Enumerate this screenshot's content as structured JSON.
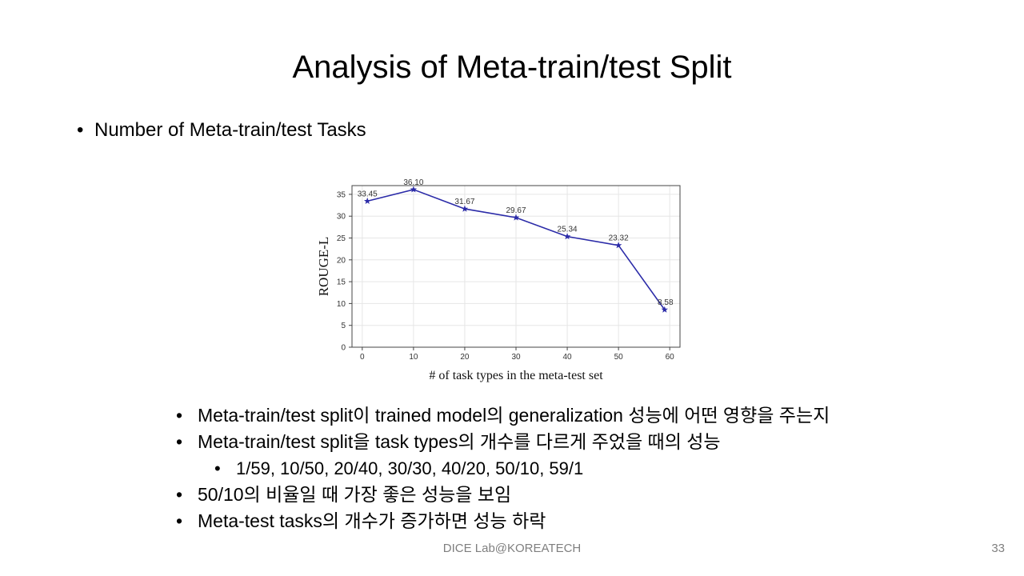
{
  "slide": {
    "title": "Analysis of Meta-train/test Split",
    "top_bullet": "Number of Meta-train/test Tasks",
    "bullet_symbol": "•",
    "bullets": [
      {
        "text": "Meta-train/test split이 trained model의 generalization 성능에 어떤 영향을 주는지",
        "level": 1
      },
      {
        "text": "Meta-train/test split을 task types의 개수를 다르게 주었을 때의 성능",
        "level": 1
      },
      {
        "text": "1/59, 10/50, 20/40, 30/30, 40/20, 50/10, 59/1",
        "level": 2
      },
      {
        "text": "50/10의 비율일 때 가장 좋은 성능을 보임",
        "level": 1
      },
      {
        "text": "Meta-test tasks의 개수가 증가하면 성능 하락",
        "level": 1
      }
    ],
    "footer": "DICE Lab@KOREATECH",
    "page_number": "33"
  },
  "chart_data": {
    "type": "line",
    "xlabel": "# of task types in the meta-test set",
    "ylabel": "ROUGE-L",
    "xlim": [
      -2,
      62
    ],
    "ylim": [
      0,
      37
    ],
    "x_ticks": [
      0,
      10,
      20,
      30,
      40,
      50,
      60
    ],
    "y_ticks": [
      0,
      5,
      10,
      15,
      20,
      25,
      30,
      35
    ],
    "grid": true,
    "series": [
      {
        "x": [
          1,
          10,
          20,
          30,
          40,
          50,
          59
        ],
        "values": [
          33.45,
          36.1,
          31.67,
          29.67,
          25.34,
          23.32,
          8.58
        ],
        "labels": [
          "33.45",
          "36.10",
          "31.67",
          "29.67",
          "25.34",
          "23.32",
          "8.58"
        ],
        "color": "#2b2ba8",
        "marker": "star"
      }
    ]
  }
}
